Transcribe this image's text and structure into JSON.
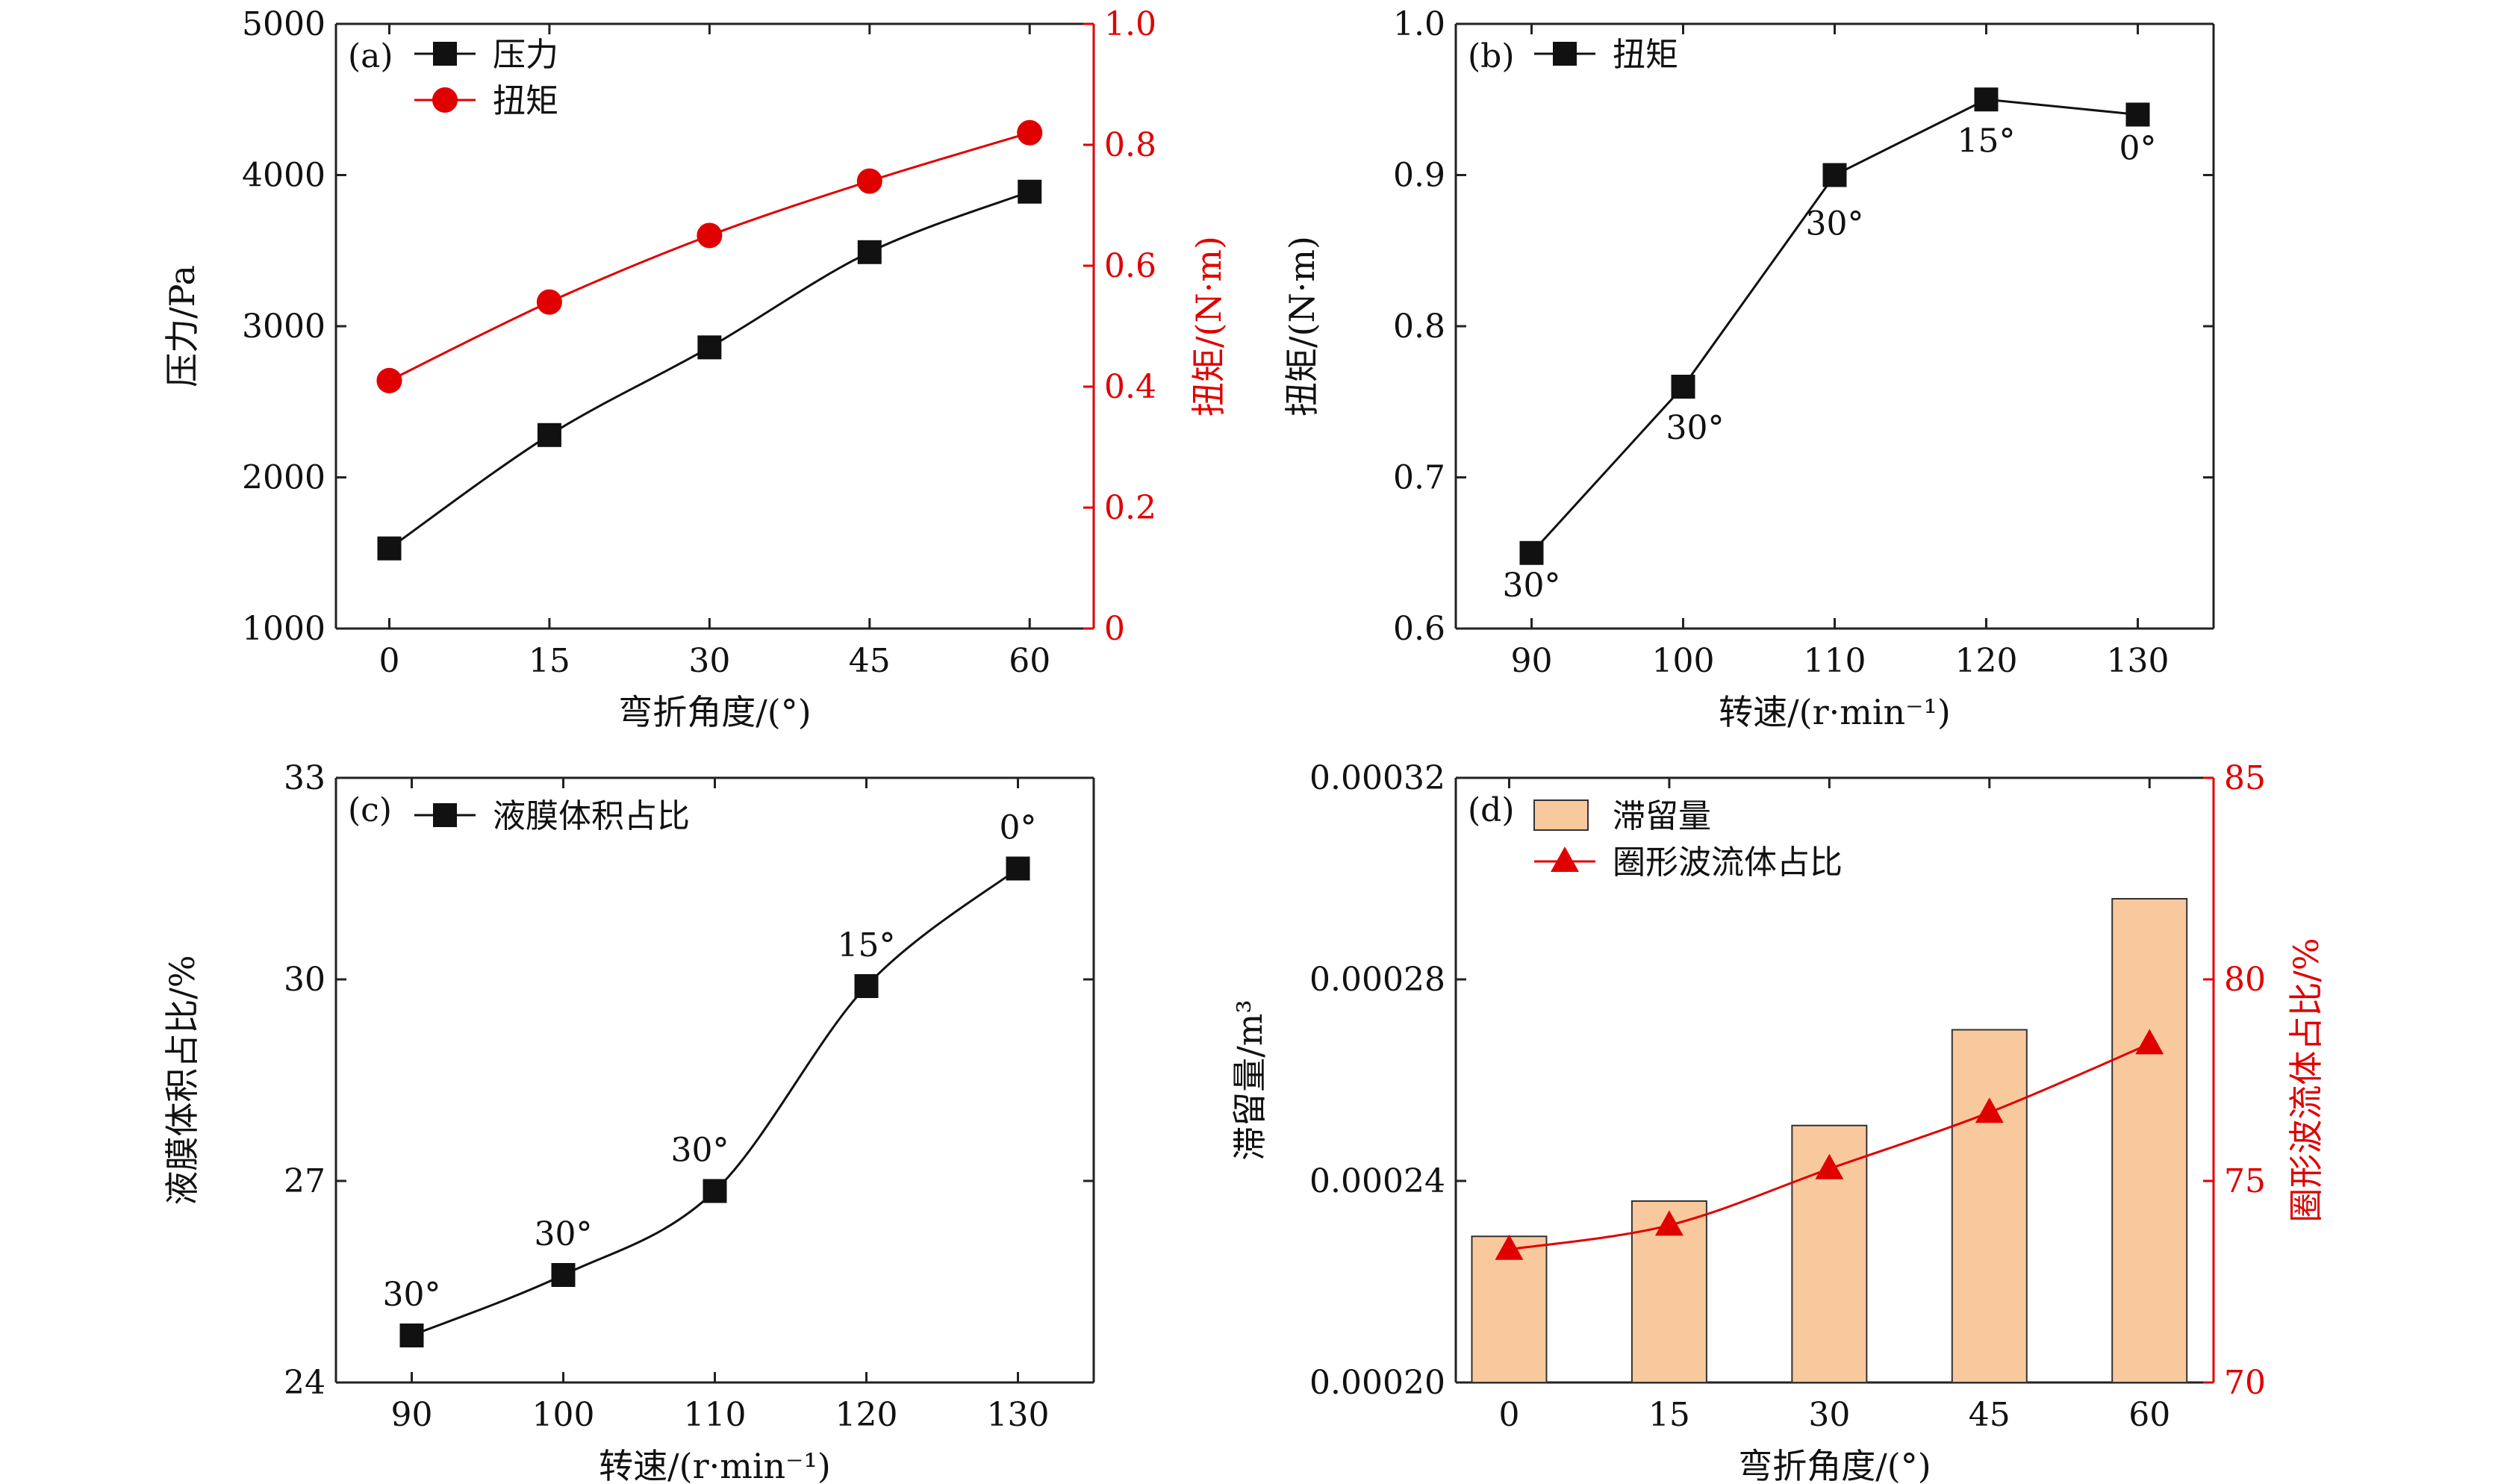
{
  "colors": {
    "black": "#111111",
    "red": "#e00000",
    "bar_fill": "#f9c99e",
    "bar_edge": "#333333"
  },
  "chart_data": [
    {
      "id": "a",
      "type": "line",
      "panel_label": "(a)",
      "xlabel": "弯折角度/(°)",
      "ylabel": "压力/Pa",
      "ylim": [
        1000,
        5000
      ],
      "yticks": [
        1000,
        2000,
        3000,
        4000,
        5000
      ],
      "y2label": "扭矩/(N·m)",
      "y2lim": [
        0,
        1.0
      ],
      "y2ticks": [
        "0",
        "0.2",
        "0.4",
        "0.6",
        "0.8",
        "1.0"
      ],
      "xlim": [
        -5,
        66
      ],
      "xticks": [
        0,
        15,
        30,
        45,
        60
      ],
      "legend_position": "top-left",
      "series": [
        {
          "name": "压力",
          "axis": "left",
          "marker": "square",
          "color": "#111111",
          "x": [
            0,
            15,
            30,
            45,
            60
          ],
          "y": [
            1530,
            2280,
            2860,
            3490,
            3890
          ]
        },
        {
          "name": "扭矩",
          "axis": "right",
          "marker": "circle",
          "color": "#e00000",
          "x": [
            0,
            15,
            30,
            45,
            60
          ],
          "y": [
            0.41,
            0.54,
            0.65,
            0.74,
            0.82
          ]
        }
      ]
    },
    {
      "id": "b",
      "type": "line",
      "panel_label": "(b)",
      "xlabel": "转速/(r·min⁻¹)",
      "ylabel": "扭矩/(N·m)",
      "ylim": [
        0.6,
        1.0
      ],
      "yticks": [
        "0.6",
        "0.7",
        "0.8",
        "0.9",
        "1.0"
      ],
      "xlim": [
        85,
        135
      ],
      "xticks": [
        90,
        100,
        110,
        120,
        130
      ],
      "legend_position": "top-left",
      "series": [
        {
          "name": "扭矩",
          "axis": "left",
          "marker": "square",
          "color": "#111111",
          "x": [
            90,
            100,
            110,
            120,
            130
          ],
          "y": [
            0.65,
            0.76,
            0.9,
            0.95,
            0.94
          ],
          "labels": [
            "30°",
            "30°",
            "30°",
            "15°",
            "0°"
          ]
        }
      ]
    },
    {
      "id": "c",
      "type": "line",
      "panel_label": "(c)",
      "xlabel": "转速/(r·min⁻¹)",
      "ylabel": "液膜体积占比/%",
      "ylim": [
        24,
        33
      ],
      "yticks": [
        24,
        27,
        30,
        33
      ],
      "xlim": [
        85,
        135
      ],
      "xticks": [
        90,
        100,
        110,
        120,
        130
      ],
      "legend_position": "top-left",
      "series": [
        {
          "name": "液膜体积占比",
          "axis": "left",
          "marker": "square",
          "color": "#111111",
          "x": [
            90,
            100,
            110,
            120,
            130
          ],
          "y": [
            24.7,
            25.6,
            26.85,
            29.9,
            31.65
          ],
          "labels": [
            "30°",
            "30°",
            "30°",
            "15°",
            "0°"
          ]
        }
      ]
    },
    {
      "id": "d",
      "type": "bar",
      "panel_label": "(d)",
      "xlabel": "弯折角度/(°)",
      "ylabel": "滞留量/m³",
      "ylim": [
        0.0002,
        0.00032
      ],
      "yticks": [
        "0.00020",
        "0.00024",
        "0.00028",
        "0.00032"
      ],
      "y2label": "圈形波流体占比/%",
      "y2lim": [
        70,
        85
      ],
      "y2ticks": [
        "70",
        "75",
        "80",
        "85"
      ],
      "xlim": [
        -5,
        66
      ],
      "xticks": [
        0,
        15,
        30,
        45,
        60
      ],
      "legend_position": "top-left",
      "series": [
        {
          "name": "滞留量",
          "kind": "bar",
          "axis": "left",
          "color": "#f9c99e",
          "x": [
            0,
            15,
            30,
            45,
            60
          ],
          "y": [
            0.000229,
            0.000236,
            0.000251,
            0.00027,
            0.000296
          ]
        },
        {
          "name": "圈形波流体占比",
          "kind": "line",
          "axis": "right",
          "marker": "triangle",
          "color": "#e00000",
          "x": [
            0,
            15,
            30,
            45,
            60
          ],
          "y": [
            73.3,
            73.9,
            75.3,
            76.7,
            78.4
          ]
        }
      ]
    }
  ]
}
